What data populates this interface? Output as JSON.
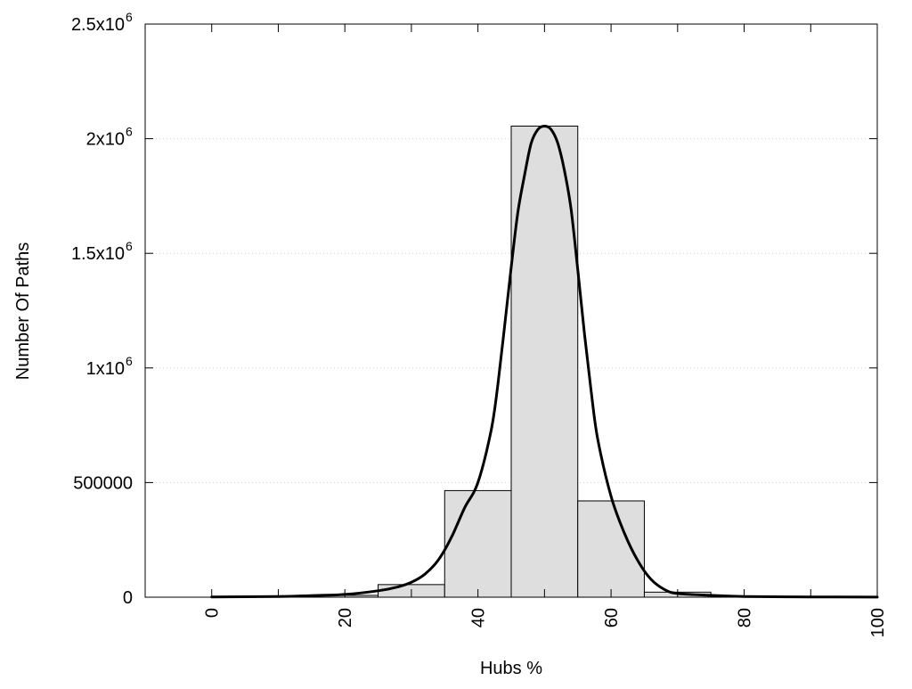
{
  "chart_data": {
    "type": "bar",
    "xlabel": "Hubs %",
    "ylabel": "Number Of Paths",
    "xlim": [
      -10,
      100
    ],
    "ylim": [
      0,
      2500000
    ],
    "grid": "horizontal dotted",
    "x_ticks": [
      {
        "value": 0,
        "label": "0"
      },
      {
        "value": 20,
        "label": "20"
      },
      {
        "value": 40,
        "label": "40"
      },
      {
        "value": 60,
        "label": "60"
      },
      {
        "value": 80,
        "label": "80"
      },
      {
        "value": 100,
        "label": "100"
      }
    ],
    "y_ticks": [
      {
        "value": 0,
        "label": "0"
      },
      {
        "value": 500000,
        "label": "500000"
      },
      {
        "value": 1000000,
        "label": "1x10",
        "sup": "6"
      },
      {
        "value": 1500000,
        "label": "1.5x10",
        "sup": "6"
      },
      {
        "value": 2000000,
        "label": "2x10",
        "sup": "6"
      },
      {
        "value": 2500000,
        "label": "2.5x10",
        "sup": "6"
      }
    ],
    "bins": [
      {
        "from": 15,
        "to": 25,
        "value": 8000
      },
      {
        "from": 25,
        "to": 35,
        "value": 55000
      },
      {
        "from": 35,
        "to": 45,
        "value": 465000
      },
      {
        "from": 45,
        "to": 55,
        "value": 2055000
      },
      {
        "from": 55,
        "to": 65,
        "value": 420000
      },
      {
        "from": 65,
        "to": 75,
        "value": 22000
      }
    ],
    "fit_curve": {
      "x": [
        0,
        10,
        15,
        20,
        25,
        28,
        30,
        32,
        34,
        36,
        38,
        40,
        42,
        43,
        44,
        45,
        46,
        47,
        48,
        49,
        50,
        51,
        52,
        53,
        54,
        55,
        56,
        57,
        58,
        60,
        62,
        64,
        66,
        68,
        70,
        75,
        80,
        90,
        100
      ],
      "y": [
        1000,
        3000,
        7000,
        12000,
        28000,
        45000,
        65000,
        100000,
        160000,
        260000,
        390000,
        500000,
        730000,
        930000,
        1180000,
        1440000,
        1680000,
        1840000,
        1980000,
        2040000,
        2055000,
        2040000,
        1980000,
        1860000,
        1690000,
        1430000,
        1150000,
        900000,
        690000,
        440000,
        280000,
        160000,
        78000,
        34000,
        16000,
        8000,
        3000,
        1000,
        500
      ]
    },
    "colors": {
      "bar_fill": "#dedede",
      "bar_stroke": "#000000",
      "curve": "#000000",
      "grid": "#d0d0d0"
    }
  }
}
